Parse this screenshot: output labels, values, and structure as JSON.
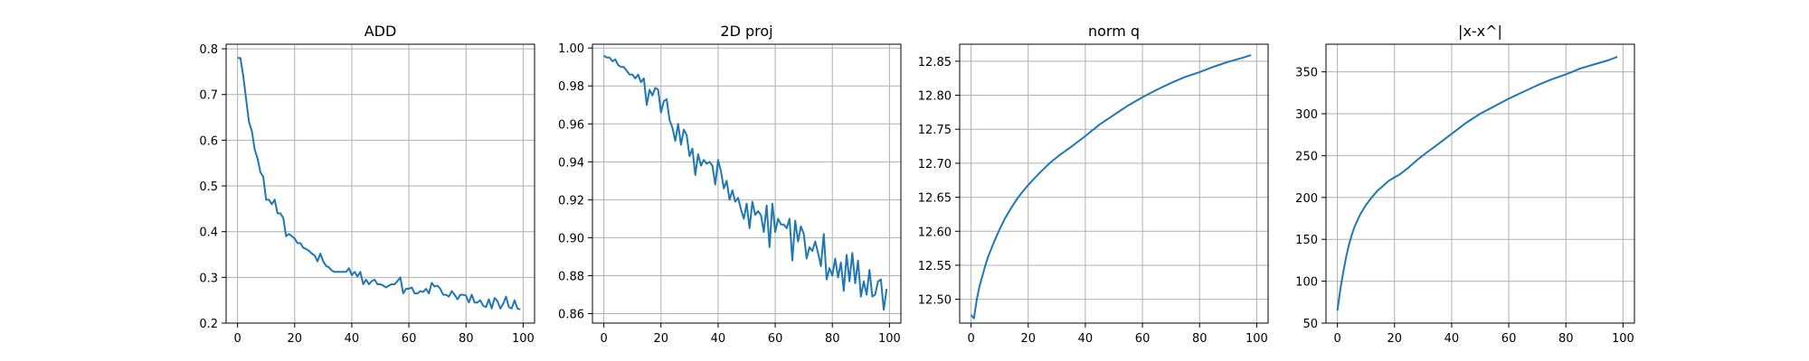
{
  "chart_data": [
    {
      "type": "line",
      "title": "ADD",
      "xlabel": "",
      "ylabel": "",
      "xlim": [
        -4,
        104
      ],
      "ylim": [
        0.2,
        0.81
      ],
      "xticks": [
        0,
        20,
        40,
        60,
        80,
        100
      ],
      "yticks": [
        0.2,
        0.3,
        0.4,
        0.5,
        0.6,
        0.7,
        0.8
      ],
      "ytick_labels": [
        "0.2",
        "0.3",
        "0.4",
        "0.5",
        "0.6",
        "0.7",
        "0.8"
      ],
      "grid": true,
      "color": "#1f77b4",
      "series": [
        {
          "x": [
            0,
            1,
            2,
            3,
            4,
            5,
            6,
            7,
            8,
            9,
            10,
            11,
            12,
            13,
            14,
            15,
            16,
            17,
            18,
            19,
            20,
            21,
            22,
            23,
            24,
            25,
            26,
            27,
            28,
            29,
            30,
            31,
            32,
            33,
            34,
            35,
            36,
            37,
            38,
            39,
            40,
            41,
            42,
            43,
            44,
            45,
            46,
            47,
            48,
            49,
            50,
            51,
            52,
            53,
            54,
            55,
            56,
            57,
            58,
            59,
            60,
            61,
            62,
            63,
            64,
            65,
            66,
            67,
            68,
            69,
            70,
            71,
            72,
            73,
            74,
            75,
            76,
            77,
            78,
            79,
            80,
            81,
            82,
            83,
            84,
            85,
            86,
            87,
            88,
            89,
            90,
            91,
            92,
            93,
            94,
            95,
            96,
            97,
            98,
            99
          ],
          "y": [
            0.78,
            0.78,
            0.74,
            0.69,
            0.64,
            0.62,
            0.58,
            0.56,
            0.53,
            0.52,
            0.47,
            0.47,
            0.46,
            0.47,
            0.44,
            0.44,
            0.43,
            0.39,
            0.395,
            0.39,
            0.385,
            0.375,
            0.375,
            0.365,
            0.362,
            0.358,
            0.352,
            0.348,
            0.335,
            0.352,
            0.335,
            0.325,
            0.322,
            0.315,
            0.312,
            0.312,
            0.312,
            0.312,
            0.312,
            0.32,
            0.305,
            0.312,
            0.302,
            0.312,
            0.285,
            0.295,
            0.285,
            0.292,
            0.295,
            0.285,
            0.285,
            0.282,
            0.278,
            0.282,
            0.285,
            0.285,
            0.292,
            0.3,
            0.265,
            0.275,
            0.275,
            0.278,
            0.265,
            0.265,
            0.27,
            0.268,
            0.275,
            0.265,
            0.288,
            0.28,
            0.282,
            0.275,
            0.262,
            0.262,
            0.258,
            0.27,
            0.262,
            0.252,
            0.262,
            0.262,
            0.26,
            0.245,
            0.262,
            0.245,
            0.245,
            0.25,
            0.238,
            0.235,
            0.252,
            0.232,
            0.255,
            0.248,
            0.232,
            0.242,
            0.258,
            0.235,
            0.232,
            0.25,
            0.232,
            0.23
          ]
        }
      ]
    },
    {
      "type": "line",
      "title": "2D proj",
      "xlabel": "",
      "ylabel": "",
      "xlim": [
        -4,
        104
      ],
      "ylim": [
        0.855,
        1.002
      ],
      "xticks": [
        0,
        20,
        40,
        60,
        80,
        100
      ],
      "yticks": [
        0.86,
        0.88,
        0.9,
        0.92,
        0.94,
        0.96,
        0.98,
        1.0
      ],
      "ytick_labels": [
        "0.86",
        "0.88",
        "0.90",
        "0.92",
        "0.94",
        "0.96",
        "0.98",
        "1.00"
      ],
      "grid": true,
      "color": "#1f77b4",
      "series": [
        {
          "x": [
            0,
            1,
            2,
            3,
            4,
            5,
            6,
            7,
            8,
            9,
            10,
            11,
            12,
            13,
            14,
            15,
            16,
            17,
            18,
            19,
            20,
            21,
            22,
            23,
            24,
            25,
            26,
            27,
            28,
            29,
            30,
            31,
            32,
            33,
            34,
            35,
            36,
            37,
            38,
            39,
            40,
            41,
            42,
            43,
            44,
            45,
            46,
            47,
            48,
            49,
            50,
            51,
            52,
            53,
            54,
            55,
            56,
            57,
            58,
            59,
            60,
            61,
            62,
            63,
            64,
            65,
            66,
            67,
            68,
            69,
            70,
            71,
            72,
            73,
            74,
            75,
            76,
            77,
            78,
            79,
            80,
            81,
            82,
            83,
            84,
            85,
            86,
            87,
            88,
            89,
            90,
            91,
            92,
            93,
            94,
            95,
            96,
            97,
            98,
            99
          ],
          "y": [
            0.996,
            0.995,
            0.995,
            0.993,
            0.994,
            0.991,
            0.99,
            0.99,
            0.988,
            0.986,
            0.986,
            0.984,
            0.986,
            0.982,
            0.984,
            0.97,
            0.978,
            0.975,
            0.979,
            0.978,
            0.966,
            0.972,
            0.973,
            0.962,
            0.958,
            0.951,
            0.96,
            0.949,
            0.957,
            0.954,
            0.943,
            0.947,
            0.933,
            0.944,
            0.938,
            0.941,
            0.939,
            0.94,
            0.938,
            0.928,
            0.941,
            0.935,
            0.926,
            0.93,
            0.92,
            0.925,
            0.919,
            0.921,
            0.915,
            0.91,
            0.918,
            0.905,
            0.919,
            0.912,
            0.914,
            0.912,
            0.903,
            0.917,
            0.895,
            0.918,
            0.903,
            0.91,
            0.907,
            0.907,
            0.905,
            0.91,
            0.888,
            0.909,
            0.898,
            0.906,
            0.902,
            0.889,
            0.895,
            0.893,
            0.898,
            0.892,
            0.885,
            0.902,
            0.878,
            0.884,
            0.88,
            0.889,
            0.879,
            0.887,
            0.872,
            0.891,
            0.877,
            0.892,
            0.876,
            0.888,
            0.869,
            0.877,
            0.87,
            0.883,
            0.869,
            0.87,
            0.877,
            0.878,
            0.862,
            0.873
          ]
        }
      ]
    },
    {
      "type": "line",
      "title": "norm q",
      "xlabel": "",
      "ylabel": "",
      "xlim": [
        -4,
        104
      ],
      "ylim": [
        12.465,
        12.875
      ],
      "xticks": [
        0,
        20,
        40,
        60,
        80,
        100
      ],
      "yticks": [
        12.5,
        12.55,
        12.6,
        12.65,
        12.7,
        12.75,
        12.8,
        12.85
      ],
      "ytick_labels": [
        "12.50",
        "12.55",
        "12.60",
        "12.65",
        "12.70",
        "12.75",
        "12.80",
        "12.85"
      ],
      "grid": true,
      "color": "#1f77b4",
      "series": [
        {
          "x": [
            0,
            1,
            2,
            3,
            4,
            5,
            6,
            8,
            10,
            12,
            14,
            16,
            18,
            20,
            22,
            25,
            28,
            31,
            35,
            40,
            45,
            50,
            55,
            60,
            65,
            70,
            75,
            80,
            85,
            90,
            95,
            98
          ],
          "y": [
            12.477,
            12.472,
            12.5,
            12.52,
            12.535,
            12.55,
            12.563,
            12.584,
            12.603,
            12.62,
            12.634,
            12.647,
            12.658,
            12.668,
            12.677,
            12.69,
            12.702,
            12.712,
            12.724,
            12.74,
            12.757,
            12.771,
            12.785,
            12.797,
            12.808,
            12.818,
            12.827,
            12.834,
            12.842,
            12.849,
            12.855,
            12.859
          ]
        }
      ]
    },
    {
      "type": "line",
      "title": "|x-x^|",
      "xlabel": "",
      "ylabel": "",
      "xlim": [
        -4,
        104
      ],
      "ylim": [
        50,
        383
      ],
      "xticks": [
        0,
        20,
        40,
        60,
        80,
        100
      ],
      "yticks": [
        50,
        100,
        150,
        200,
        250,
        300,
        350
      ],
      "ytick_labels": [
        "50",
        "100",
        "150",
        "200",
        "250",
        "300",
        "350"
      ],
      "grid": true,
      "color": "#1f77b4",
      "series": [
        {
          "x": [
            0,
            1,
            2,
            3,
            4,
            5,
            6,
            8,
            10,
            12,
            14,
            16,
            18,
            20,
            22,
            25,
            28,
            31,
            35,
            40,
            45,
            50,
            55,
            60,
            65,
            70,
            75,
            80,
            85,
            90,
            95,
            98
          ],
          "y": [
            65,
            90,
            110,
            128,
            143,
            155,
            165,
            180,
            191,
            200,
            208,
            214,
            220,
            224,
            228,
            236,
            245,
            253,
            263,
            276,
            289,
            300,
            309,
            318,
            326,
            334,
            341,
            347,
            354,
            359,
            364,
            368
          ]
        }
      ]
    }
  ]
}
